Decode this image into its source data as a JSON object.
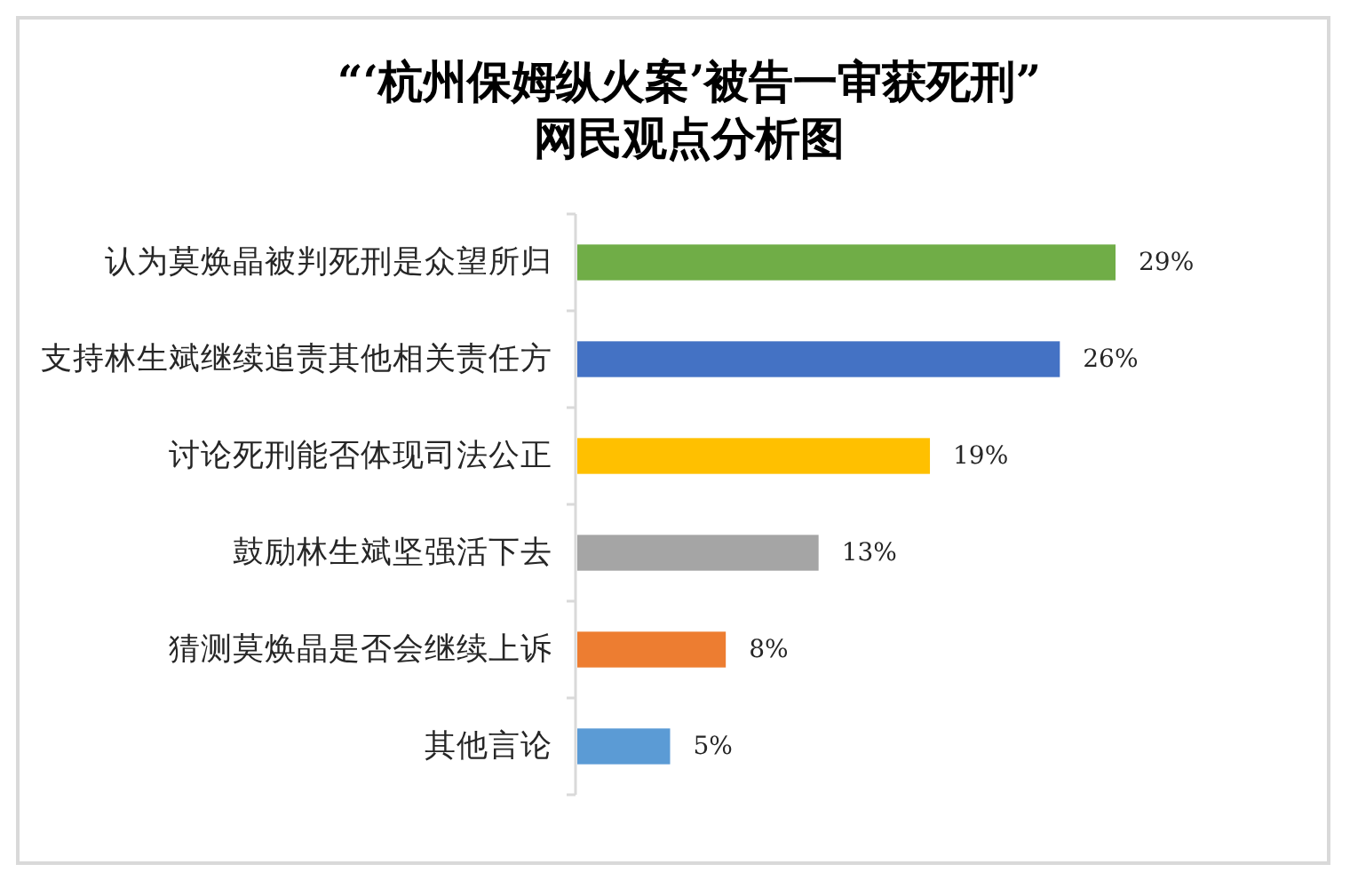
{
  "chart_data": {
    "type": "bar",
    "orientation": "horizontal",
    "title": "“‘杭州保姆纵火案’被告一审获死刑”\n网民观点分析图",
    "categories": [
      "认为莫焕晶被判死刑是众望所归",
      "支持林生斌继续追责其他相关责任方",
      "讨论死刑能否体现司法公正",
      "鼓励林生斌坚强活下去",
      "猜测莫焕晶是否会继续上诉",
      "其他言论"
    ],
    "values": [
      29,
      26,
      19,
      13,
      8,
      5
    ],
    "colors": [
      "#70ad47",
      "#4472c4",
      "#ffc000",
      "#a5a5a5",
      "#ed7d31",
      "#5b9bd5"
    ],
    "value_labels": [
      "29%",
      "26%",
      "19%",
      "13%",
      "8%",
      "5%"
    ],
    "tick_labels": "y"
  }
}
